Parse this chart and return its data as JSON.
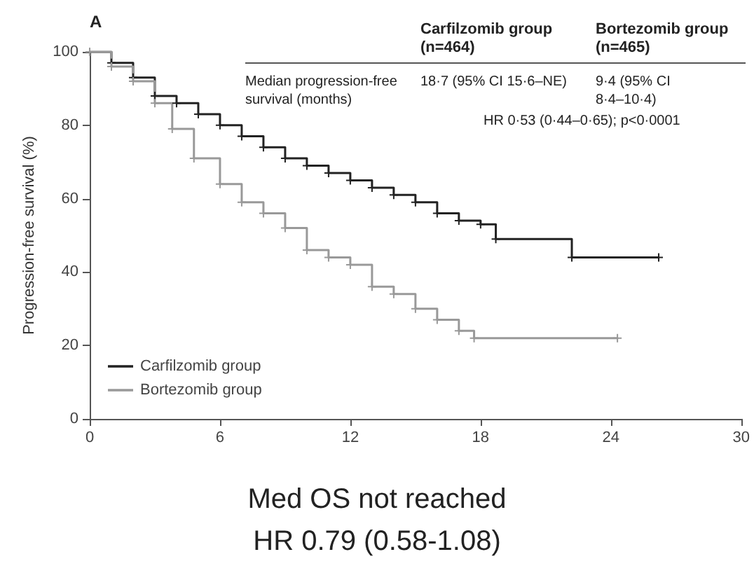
{
  "chart_data": {
    "type": "step",
    "ylabel": "Progression-free survival (%)",
    "annotations": [
      "A",
      "Carfilzomib group",
      "(n=464)",
      "Bortezomib group",
      "(n=465)",
      "Median progression-free survival (months)",
      "18·7 (95% CI 15·6–NE)",
      "9·4 (95% CI 8·4–10·4)",
      "HR 0·53 (0·44–0·65); p<0·0001",
      "Med OS not reached",
      "HR 0.79 (0.58-1.08)"
    ],
    "xlim": [
      0,
      30
    ],
    "xticks": [
      0,
      6,
      12,
      18,
      24,
      30
    ],
    "ylim": [
      0,
      100
    ],
    "yticks": [
      0,
      20,
      40,
      60,
      80,
      100
    ],
    "grid": false,
    "legend": "bottom left",
    "marker": "cross",
    "line_style": "solid",
    "series": [
      {
        "name": "Carfilzomib group",
        "color": "#222222",
        "x": [
          0,
          1,
          2,
          3,
          4,
          5,
          6,
          7,
          8,
          9,
          10,
          11,
          12,
          13,
          14,
          15,
          16,
          17,
          18,
          18.7,
          22.2,
          26.2
        ],
        "values": [
          100,
          97,
          93,
          88,
          86,
          83,
          80,
          77,
          74,
          71,
          69,
          67,
          65,
          63,
          61,
          59,
          56,
          54,
          53,
          49,
          44,
          44
        ]
      },
      {
        "name": "Bortezomib group",
        "color": "#999999",
        "x": [
          0,
          1,
          2,
          3,
          3.8,
          4.8,
          6,
          7,
          8,
          9,
          10,
          11,
          12,
          13,
          14,
          15,
          16,
          17,
          17.7,
          24.3
        ],
        "values": [
          100,
          96,
          92,
          86,
          79,
          71,
          64,
          59,
          56,
          52,
          46,
          44,
          42,
          36,
          34,
          30,
          27,
          24,
          22,
          22
        ]
      }
    ]
  }
}
